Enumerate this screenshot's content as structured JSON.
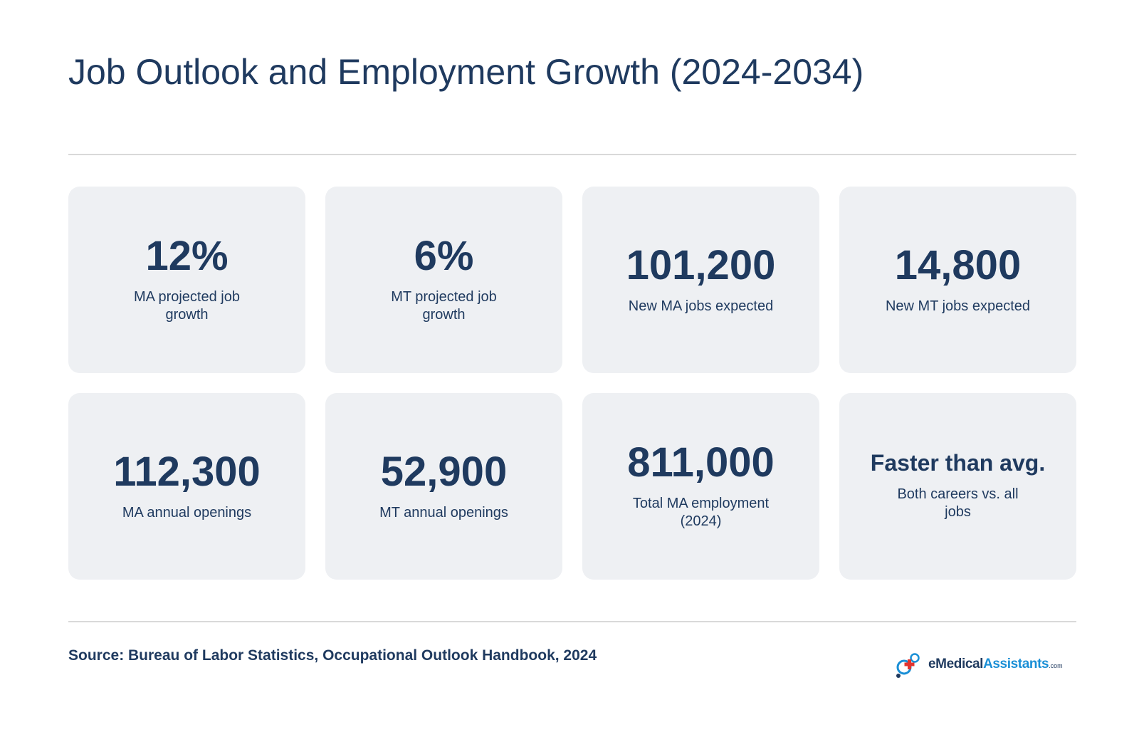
{
  "title": "Job Outlook and Employment Growth (2024-2034)",
  "stats": [
    {
      "value": "12%",
      "label": "MA projected job growth"
    },
    {
      "value": "6%",
      "label": "MT projected job growth"
    },
    {
      "value": "101,200",
      "label": "New MA jobs expected"
    },
    {
      "value": "14,800",
      "label": "New MT jobs expected"
    },
    {
      "value": "112,300",
      "label": "MA annual openings"
    },
    {
      "value": "52,900",
      "label": "MT annual openings"
    },
    {
      "value": "811,000",
      "label": "Total MA employment (2024)"
    },
    {
      "value": "Faster than avg.",
      "label": "Both careers vs. all jobs"
    }
  ],
  "source": "Source: Bureau of Labor Statistics, Occupational Outlook Handbook, 2024",
  "logo": {
    "brand_a": "eMedical",
    "brand_b": "Assistants",
    "tld": ".com",
    "icon": "medical-cross-icon"
  },
  "colors": {
    "text": "#1f3a5f",
    "card_bg": "#eef0f3",
    "rule": "#d9d9d9",
    "accent_blue": "#1a8fd6",
    "accent_red": "#e2342f"
  }
}
